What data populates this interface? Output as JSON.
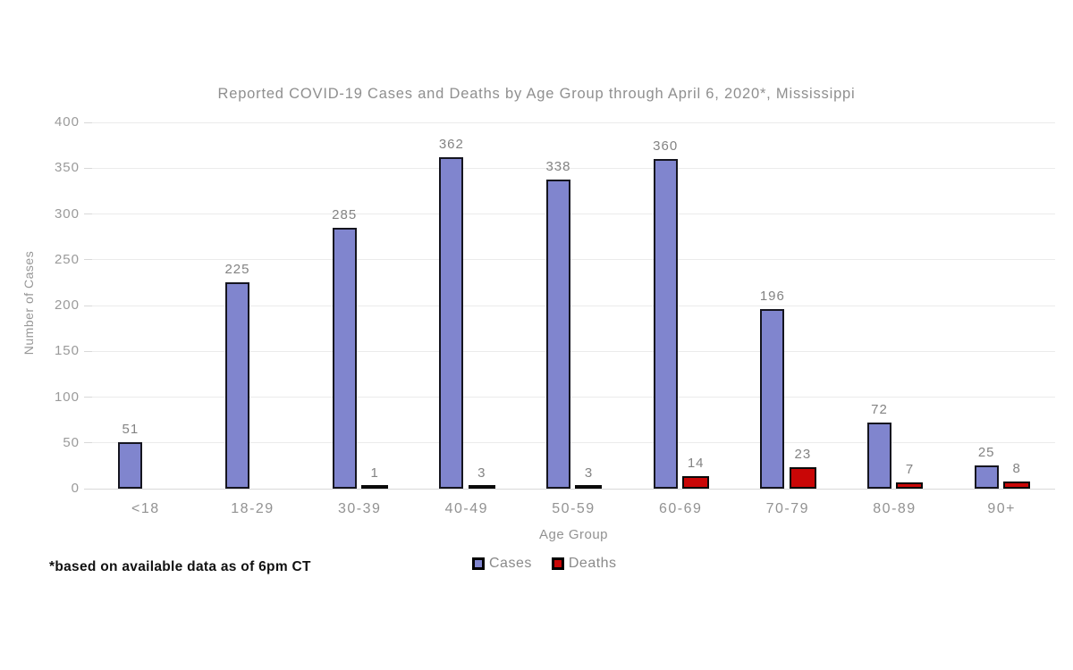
{
  "title": "Reported COVID-19 Cases and Deaths by Age Group through April 6, 2020*, Mississippi",
  "footnote": "*based on available data as of 6pm CT",
  "y_axis": {
    "title": "Number of Cases"
  },
  "x_axis": {
    "title": "Age Group"
  },
  "colors": {
    "cases_fill": "#8085CE",
    "deaths_fill": "#C90606",
    "bar_border": "#15151f",
    "gridline": "#ebebeb",
    "text_gray": "#929292"
  },
  "chart_data": {
    "type": "bar",
    "title": "Reported COVID-19 Cases and Deaths by Age Group through April 6, 2020*, Mississippi",
    "categories": [
      "<18",
      "18-29",
      "30-39",
      "40-49",
      "50-59",
      "60-69",
      "70-79",
      "80-89",
      "90+"
    ],
    "series": [
      {
        "name": "Cases",
        "color": "#8085CE",
        "values": [
          51,
          225,
          285,
          362,
          338,
          360,
          196,
          72,
          25
        ]
      },
      {
        "name": "Deaths",
        "color": "#C90606",
        "values": [
          null,
          null,
          1,
          3,
          3,
          14,
          23,
          7,
          8
        ]
      }
    ],
    "xlabel": "Age Group",
    "ylabel": "Number of Cases",
    "ylim": [
      0,
      400
    ],
    "ytick_step": 50,
    "grid": true,
    "legend_position": "bottom",
    "data_labels": true
  }
}
